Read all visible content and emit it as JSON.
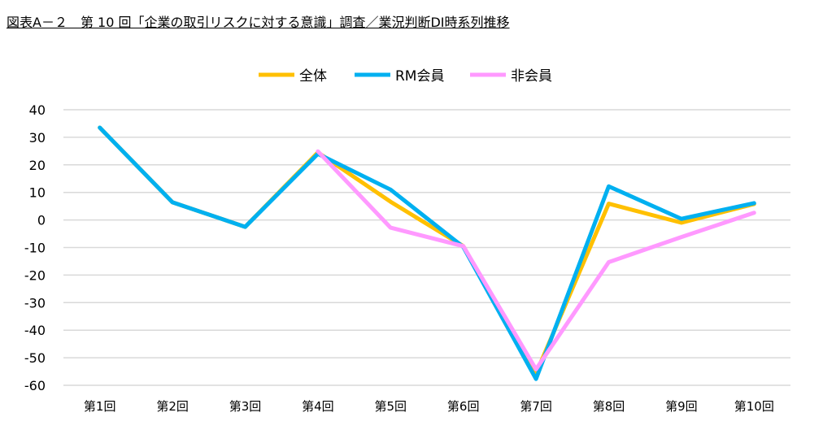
{
  "chart_data": {
    "type": "line",
    "title": "図表A－２　第 10 回「企業の取引リスクに対する意識」調査／業況判断DI時系列推移",
    "xlabel": "",
    "ylabel": "",
    "categories": [
      "第1回",
      "第2回",
      "第3回",
      "第4回",
      "第5回",
      "第6回",
      "第7回",
      "第8回",
      "第9回",
      "第10回"
    ],
    "ylim": [
      -60,
      40
    ],
    "yticks": [
      40,
      30,
      20,
      10,
      0,
      -10,
      -20,
      -30,
      -40,
      -50,
      -60
    ],
    "grid": true,
    "legend_position": "top-center",
    "series": [
      {
        "name": "全体",
        "color": "#FFC000",
        "values": [
          33.5,
          6.4,
          -2.5,
          24.5,
          6.6,
          -9.5,
          -55.7,
          5.9,
          -1.0,
          5.8
        ]
      },
      {
        "name": "RM会員",
        "color": "#00B0F0",
        "values": [
          33.5,
          6.4,
          -2.5,
          24.0,
          11.0,
          -9.8,
          -57.7,
          12.2,
          0.4,
          6.1
        ]
      },
      {
        "name": "非会員",
        "color": "#FF99FF",
        "values": [
          null,
          null,
          null,
          24.9,
          -2.8,
          -9.5,
          -54.2,
          -15.3,
          -6.2,
          2.6
        ]
      }
    ]
  }
}
